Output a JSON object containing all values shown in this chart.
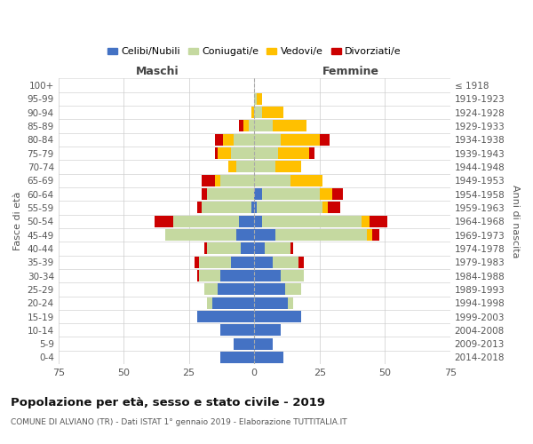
{
  "age_groups": [
    "0-4",
    "5-9",
    "10-14",
    "15-19",
    "20-24",
    "25-29",
    "30-34",
    "35-39",
    "40-44",
    "45-49",
    "50-54",
    "55-59",
    "60-64",
    "65-69",
    "70-74",
    "75-79",
    "80-84",
    "85-89",
    "90-94",
    "95-99",
    "100+"
  ],
  "birth_years": [
    "2014-2018",
    "2009-2013",
    "2004-2008",
    "1999-2003",
    "1994-1998",
    "1989-1993",
    "1984-1988",
    "1979-1983",
    "1974-1978",
    "1969-1973",
    "1964-1968",
    "1959-1963",
    "1954-1958",
    "1949-1953",
    "1944-1948",
    "1939-1943",
    "1934-1938",
    "1929-1933",
    "1924-1928",
    "1919-1923",
    "≤ 1918"
  ],
  "male": {
    "celibi": [
      13,
      8,
      13,
      22,
      16,
      14,
      13,
      9,
      5,
      7,
      6,
      1,
      0,
      0,
      0,
      0,
      0,
      0,
      0,
      0,
      0
    ],
    "coniugati": [
      0,
      0,
      0,
      0,
      2,
      5,
      8,
      12,
      13,
      27,
      25,
      19,
      18,
      13,
      7,
      9,
      8,
      2,
      0,
      0,
      0
    ],
    "vedovi": [
      0,
      0,
      0,
      0,
      0,
      0,
      0,
      0,
      0,
      0,
      0,
      0,
      0,
      2,
      3,
      5,
      4,
      2,
      1,
      0,
      0
    ],
    "divorziati": [
      0,
      0,
      0,
      0,
      0,
      0,
      1,
      2,
      1,
      0,
      7,
      2,
      2,
      5,
      0,
      1,
      3,
      2,
      0,
      0,
      0
    ]
  },
  "female": {
    "nubili": [
      11,
      7,
      10,
      18,
      13,
      12,
      10,
      7,
      4,
      8,
      3,
      1,
      3,
      0,
      0,
      0,
      0,
      0,
      0,
      0,
      0
    ],
    "coniugate": [
      0,
      0,
      0,
      0,
      2,
      6,
      9,
      10,
      10,
      35,
      38,
      25,
      22,
      14,
      8,
      9,
      10,
      7,
      3,
      1,
      0
    ],
    "vedove": [
      0,
      0,
      0,
      0,
      0,
      0,
      0,
      0,
      0,
      2,
      3,
      2,
      5,
      12,
      10,
      12,
      15,
      13,
      8,
      2,
      0
    ],
    "divorziate": [
      0,
      0,
      0,
      0,
      0,
      0,
      0,
      2,
      1,
      3,
      7,
      5,
      4,
      0,
      0,
      2,
      4,
      0,
      0,
      0,
      0
    ]
  },
  "colors": {
    "celibi": "#4472c4",
    "coniugati": "#c5d9a0",
    "vedovi": "#ffc000",
    "divorziati": "#cc0000"
  },
  "xlim": 75,
  "title": "Popolazione per età, sesso e stato civile - 2019",
  "subtitle": "COMUNE DI ALVIANO (TR) - Dati ISTAT 1° gennaio 2019 - Elaborazione TUTTITALIA.IT",
  "ylabel": "Fasce di età",
  "ylabel_right": "Anni di nascita",
  "legend_labels": [
    "Celibi/Nubili",
    "Coniugati/e",
    "Vedovi/e",
    "Divorziati/e"
  ],
  "maschi_label": "Maschi",
  "femmine_label": "Femmine",
  "bg_color": "#f5f5f5"
}
